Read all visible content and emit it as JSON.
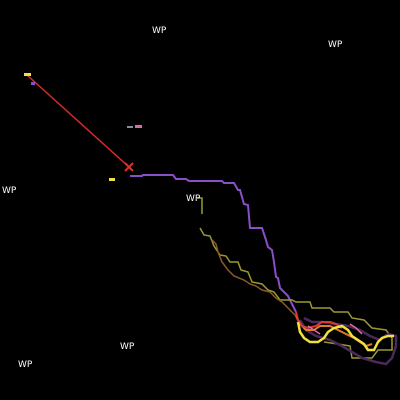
{
  "waypoints": [
    "WP",
    "WP",
    "WP",
    "WP",
    "WP",
    "WP"
  ],
  "colors": {
    "background": "#000000",
    "label_text": "#ffffff",
    "selected_line": "#d42a2a",
    "selected_marker": "#e03030",
    "track_purple": "#8a4fc8",
    "track_olive": "#9a9a30",
    "track_brown": "#8a5a2a",
    "track_orange": "#e07a2a",
    "track_yellow": "#f2e040",
    "track_red": "#d83a3a",
    "track_dark_purple": "#4a2a5a",
    "track_pink": "#e06aa0"
  },
  "tracks": [
    {
      "id": "purple-long",
      "color_key": "track_purple"
    },
    {
      "id": "olive",
      "color_key": "track_olive"
    },
    {
      "id": "brown",
      "color_key": "track_brown"
    },
    {
      "id": "dark-purple",
      "color_key": "track_dark_purple"
    },
    {
      "id": "orange",
      "color_key": "track_orange"
    },
    {
      "id": "red",
      "color_key": "track_red"
    },
    {
      "id": "yellow",
      "color_key": "track_yellow"
    },
    {
      "id": "pink",
      "color_key": "track_pink"
    }
  ]
}
